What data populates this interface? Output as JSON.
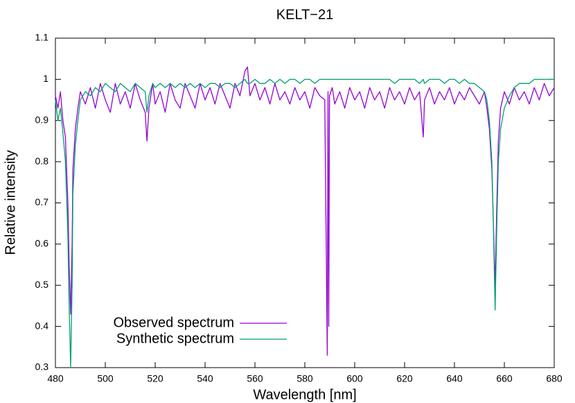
{
  "chart_data": {
    "type": "line",
    "title": "KELT−21",
    "x_label": "Wavelength [nm]",
    "y_label": "Relative intensity",
    "x": [
      480,
      481,
      482,
      483,
      484,
      485,
      485.5,
      486.1,
      486.7,
      487,
      488,
      489,
      490,
      492,
      494,
      496,
      498,
      500,
      502,
      504,
      506,
      508,
      510,
      512,
      514,
      516,
      516.7,
      517.5,
      519,
      520,
      522,
      524,
      526,
      528,
      530,
      532,
      534,
      536,
      538,
      540,
      542,
      544,
      546,
      548,
      550,
      552,
      554,
      556,
      557,
      558,
      560,
      562,
      564,
      566,
      568,
      570,
      572,
      574,
      576,
      578,
      580,
      582,
      584,
      586,
      588,
      589,
      589.3,
      589.6,
      589.9,
      591,
      592,
      594,
      596,
      598,
      600,
      602,
      604,
      606,
      608,
      610,
      612,
      614,
      616,
      618,
      620,
      622,
      624,
      626,
      627.5,
      628,
      630,
      632,
      634,
      636,
      638,
      640,
      642,
      644,
      646,
      648,
      650,
      652,
      653,
      654,
      655,
      655.6,
      656.3,
      657,
      657.6,
      658.5,
      660,
      662,
      664,
      666,
      668,
      670,
      672,
      674,
      676,
      678,
      680
    ],
    "series": [
      {
        "name": "Observed spectrum",
        "color": "#9400d3",
        "values": [
          0.96,
          0.93,
          0.97,
          0.9,
          0.86,
          0.7,
          0.55,
          0.43,
          0.6,
          0.78,
          0.88,
          0.93,
          0.97,
          0.94,
          0.98,
          0.93,
          0.99,
          0.95,
          0.92,
          0.99,
          0.94,
          0.97,
          0.93,
          0.99,
          0.95,
          0.92,
          0.85,
          0.93,
          0.99,
          0.94,
          0.97,
          0.92,
          0.99,
          0.95,
          0.93,
          0.99,
          0.96,
          0.93,
          0.99,
          0.95,
          0.98,
          0.94,
          0.99,
          0.96,
          0.93,
          0.99,
          0.96,
          1.02,
          1.03,
          0.96,
          0.99,
          0.95,
          0.98,
          0.94,
          0.99,
          0.95,
          0.97,
          0.94,
          0.98,
          0.95,
          0.97,
          0.93,
          0.98,
          0.96,
          0.95,
          0.33,
          0.97,
          0.4,
          0.96,
          0.98,
          0.94,
          0.97,
          0.93,
          0.98,
          0.95,
          0.97,
          0.93,
          0.98,
          0.95,
          0.97,
          0.93,
          0.98,
          0.95,
          0.97,
          0.94,
          0.98,
          0.95,
          0.97,
          0.86,
          0.95,
          0.98,
          0.94,
          0.97,
          0.95,
          0.98,
          0.94,
          0.97,
          0.95,
          0.98,
          0.96,
          0.94,
          0.97,
          0.93,
          0.88,
          0.78,
          0.65,
          0.5,
          0.7,
          0.85,
          0.93,
          0.97,
          0.94,
          0.98,
          0.95,
          0.97,
          0.94,
          0.98,
          0.95,
          0.99,
          0.96,
          0.98
        ]
      },
      {
        "name": "Synthetic spectrum",
        "color": "#009e73",
        "values": [
          0.95,
          0.9,
          0.93,
          0.87,
          0.8,
          0.62,
          0.45,
          0.3,
          0.5,
          0.72,
          0.84,
          0.9,
          0.95,
          0.97,
          0.96,
          0.98,
          0.97,
          0.99,
          0.98,
          0.97,
          0.99,
          0.98,
          0.97,
          0.99,
          0.98,
          0.97,
          0.92,
          0.96,
          0.99,
          0.98,
          0.99,
          0.98,
          0.99,
          0.98,
          0.99,
          0.98,
          0.99,
          0.98,
          0.99,
          0.98,
          0.99,
          0.99,
          0.98,
          0.99,
          0.99,
          0.98,
          0.99,
          1.0,
          0.99,
          0.99,
          1.0,
          0.99,
          0.99,
          1.0,
          0.99,
          1.0,
          0.99,
          1.0,
          1.0,
          0.99,
          1.0,
          1.0,
          0.99,
          1.0,
          1.0,
          1.0,
          1.0,
          1.0,
          1.0,
          1.0,
          1.0,
          1.0,
          1.0,
          1.0,
          1.0,
          1.0,
          1.0,
          1.0,
          1.0,
          1.0,
          1.0,
          1.0,
          0.99,
          1.0,
          1.0,
          1.0,
          1.0,
          0.99,
          1.0,
          0.99,
          1.0,
          1.0,
          1.0,
          0.99,
          1.0,
          1.0,
          0.99,
          1.0,
          0.99,
          0.99,
          0.98,
          0.97,
          0.95,
          0.9,
          0.8,
          0.65,
          0.44,
          0.65,
          0.8,
          0.88,
          0.93,
          0.96,
          0.98,
          0.99,
          0.99,
          0.99,
          1.0,
          1.0,
          1.0,
          1.0,
          1.0
        ]
      }
    ],
    "xlim": [
      480,
      680
    ],
    "xticks": [
      480,
      500,
      520,
      540,
      560,
      580,
      600,
      620,
      640,
      660,
      680
    ],
    "ylim": [
      0.3,
      1.1
    ],
    "yticks": [
      0.3,
      0.4,
      0.5,
      0.6,
      0.7,
      0.8,
      0.9,
      1,
      1.1
    ],
    "grid": false,
    "legend": "bottom left"
  }
}
